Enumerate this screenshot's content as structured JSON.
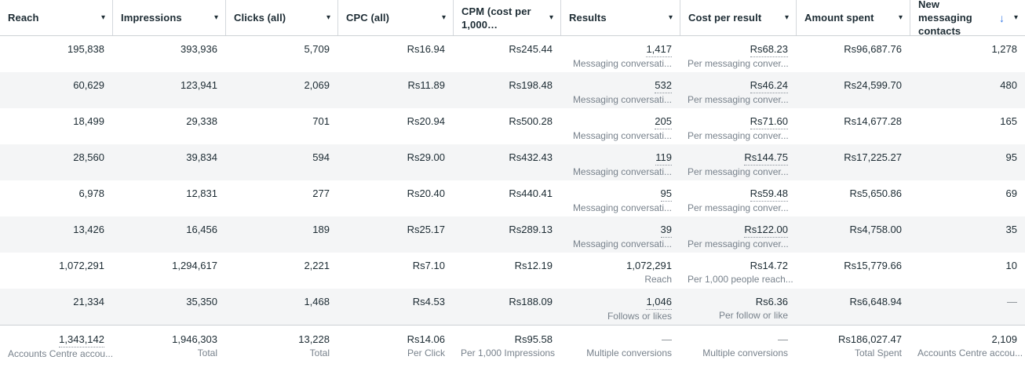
{
  "colors": {
    "text_primary": "#1c2b33",
    "text_secondary": "#78828c",
    "row_stripe": "#f4f5f6",
    "header_border": "#ced2d6",
    "sort_arrow_blue": "#3578e5"
  },
  "icons": {
    "caret_down": "▾",
    "sort_descending": "↓"
  },
  "table": {
    "columns": [
      {
        "id": "reach",
        "label": "Reach"
      },
      {
        "id": "impressions",
        "label": "Impressions"
      },
      {
        "id": "clicks-all",
        "label": "Clicks (all)"
      },
      {
        "id": "cpc-all",
        "label": "CPC (all)"
      },
      {
        "id": "cpm",
        "label": "CPM (cost per 1,000…"
      },
      {
        "id": "results",
        "label": "Results"
      },
      {
        "id": "cost-per-result",
        "label": "Cost per result"
      },
      {
        "id": "amount-spent",
        "label": "Amount spent"
      },
      {
        "id": "new-messaging-contacts",
        "label": "New messaging contacts",
        "sorted": "descending"
      }
    ],
    "rows": [
      [
        {
          "value": "195,838"
        },
        {
          "value": "393,936"
        },
        {
          "value": "5,709"
        },
        {
          "value": "Rs16.94"
        },
        {
          "value": "Rs245.44"
        },
        {
          "value": "1,417",
          "sub": "Messaging conversati...",
          "underlined": true
        },
        {
          "value": "Rs68.23",
          "sub": "Per messaging conver...",
          "underlined": true
        },
        {
          "value": "Rs96,687.76"
        },
        {
          "value": "1,278"
        }
      ],
      [
        {
          "value": "60,629"
        },
        {
          "value": "123,941"
        },
        {
          "value": "2,069"
        },
        {
          "value": "Rs11.89"
        },
        {
          "value": "Rs198.48"
        },
        {
          "value": "532",
          "sub": "Messaging conversati...",
          "underlined": true
        },
        {
          "value": "Rs46.24",
          "sub": "Per messaging conver...",
          "underlined": true
        },
        {
          "value": "Rs24,599.70"
        },
        {
          "value": "480"
        }
      ],
      [
        {
          "value": "18,499"
        },
        {
          "value": "29,338"
        },
        {
          "value": "701"
        },
        {
          "value": "Rs20.94"
        },
        {
          "value": "Rs500.28"
        },
        {
          "value": "205",
          "sub": "Messaging conversati...",
          "underlined": true
        },
        {
          "value": "Rs71.60",
          "sub": "Per messaging conver...",
          "underlined": true
        },
        {
          "value": "Rs14,677.28"
        },
        {
          "value": "165"
        }
      ],
      [
        {
          "value": "28,560"
        },
        {
          "value": "39,834"
        },
        {
          "value": "594"
        },
        {
          "value": "Rs29.00"
        },
        {
          "value": "Rs432.43"
        },
        {
          "value": "119",
          "sub": "Messaging conversati...",
          "underlined": true
        },
        {
          "value": "Rs144.75",
          "sub": "Per messaging conver...",
          "underlined": true
        },
        {
          "value": "Rs17,225.27"
        },
        {
          "value": "95"
        }
      ],
      [
        {
          "value": "6,978"
        },
        {
          "value": "12,831"
        },
        {
          "value": "277"
        },
        {
          "value": "Rs20.40"
        },
        {
          "value": "Rs440.41"
        },
        {
          "value": "95",
          "sub": "Messaging conversati...",
          "underlined": true
        },
        {
          "value": "Rs59.48",
          "sub": "Per messaging conver...",
          "underlined": true
        },
        {
          "value": "Rs5,650.86"
        },
        {
          "value": "69"
        }
      ],
      [
        {
          "value": "13,426"
        },
        {
          "value": "16,456"
        },
        {
          "value": "189"
        },
        {
          "value": "Rs25.17"
        },
        {
          "value": "Rs289.13"
        },
        {
          "value": "39",
          "sub": "Messaging conversati...",
          "underlined": true
        },
        {
          "value": "Rs122.00",
          "sub": "Per messaging conver...",
          "underlined": true
        },
        {
          "value": "Rs4,758.00"
        },
        {
          "value": "35"
        }
      ],
      [
        {
          "value": "1,072,291"
        },
        {
          "value": "1,294,617"
        },
        {
          "value": "2,221"
        },
        {
          "value": "Rs7.10"
        },
        {
          "value": "Rs12.19"
        },
        {
          "value": "1,072,291",
          "sub": "Reach"
        },
        {
          "value": "Rs14.72",
          "sub": "Per 1,000 people reach..."
        },
        {
          "value": "Rs15,779.66"
        },
        {
          "value": "10"
        }
      ],
      [
        {
          "value": "21,334"
        },
        {
          "value": "35,350"
        },
        {
          "value": "1,468"
        },
        {
          "value": "Rs4.53"
        },
        {
          "value": "Rs188.09"
        },
        {
          "value": "1,046",
          "sub": "Follows or likes",
          "underlined": true
        },
        {
          "value": "Rs6.36",
          "sub": "Per follow or like"
        },
        {
          "value": "Rs6,648.94"
        },
        {
          "value": "—",
          "muted": true
        }
      ]
    ],
    "summary": [
      {
        "value": "1,343,142",
        "sub": "Accounts Centre accou...",
        "underlined": true
      },
      {
        "value": "1,946,303",
        "sub": "Total"
      },
      {
        "value": "13,228",
        "sub": "Total"
      },
      {
        "value": "Rs14.06",
        "sub": "Per Click"
      },
      {
        "value": "Rs95.58",
        "sub": "Per 1,000 Impressions"
      },
      {
        "value": "—",
        "sub": "Multiple conversions",
        "muted": true
      },
      {
        "value": "—",
        "sub": "Multiple conversions",
        "muted": true
      },
      {
        "value": "Rs186,027.47",
        "sub": "Total Spent"
      },
      {
        "value": "2,109",
        "sub": "Accounts Centre accou..."
      }
    ]
  }
}
